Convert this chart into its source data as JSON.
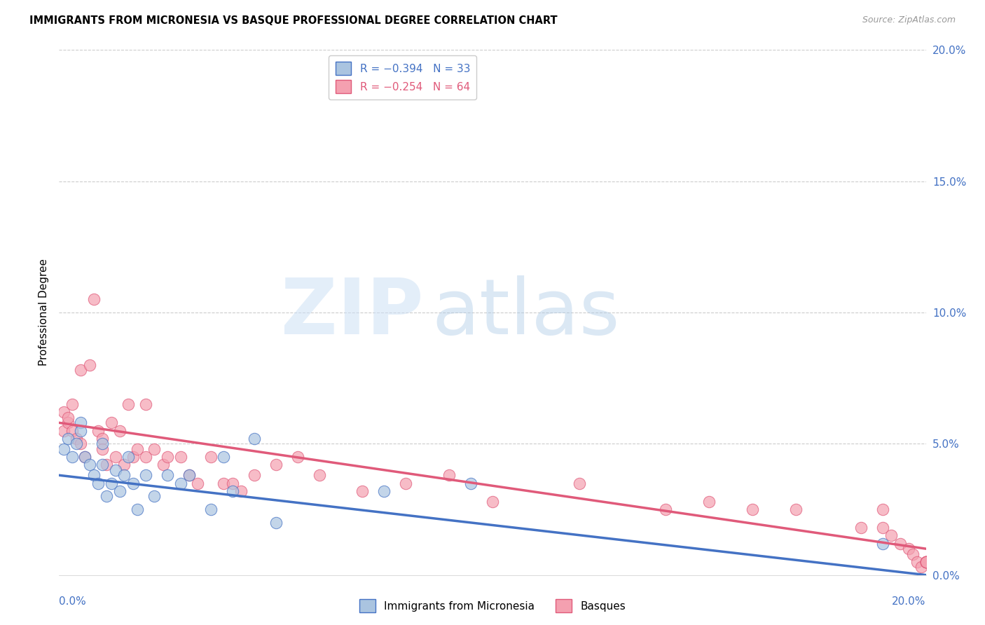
{
  "title": "IMMIGRANTS FROM MICRONESIA VS BASQUE PROFESSIONAL DEGREE CORRELATION CHART",
  "source": "Source: ZipAtlas.com",
  "ylabel": "Professional Degree",
  "right_ytick_labels": [
    "0.0%",
    "5.0%",
    "10.0%",
    "15.0%",
    "20.0%"
  ],
  "right_ytick_values": [
    0.0,
    5.0,
    10.0,
    15.0,
    20.0
  ],
  "xlim": [
    0.0,
    20.0
  ],
  "ylim": [
    0.0,
    20.0
  ],
  "legend_labels_bottom": [
    "Immigrants from Micronesia",
    "Basques"
  ],
  "legend_colors_bottom": [
    "#aac4e0",
    "#f4a0b0"
  ],
  "blue_line_color": "#4472c4",
  "pink_line_color": "#e05a7a",
  "blue_dot_color": "#aac4e0",
  "pink_dot_color": "#f4a0b0",
  "background_color": "#ffffff",
  "grid_color": "#cccccc",
  "blue_scatter_x": [
    0.1,
    0.2,
    0.3,
    0.4,
    0.5,
    0.5,
    0.6,
    0.7,
    0.8,
    0.9,
    1.0,
    1.0,
    1.1,
    1.2,
    1.3,
    1.4,
    1.5,
    1.6,
    1.7,
    1.8,
    2.0,
    2.2,
    2.5,
    2.8,
    3.0,
    3.5,
    3.8,
    4.0,
    4.5,
    5.0,
    7.5,
    9.5,
    19.0
  ],
  "blue_scatter_y": [
    4.8,
    5.2,
    4.5,
    5.0,
    5.8,
    5.5,
    4.5,
    4.2,
    3.8,
    3.5,
    5.0,
    4.2,
    3.0,
    3.5,
    4.0,
    3.2,
    3.8,
    4.5,
    3.5,
    2.5,
    3.8,
    3.0,
    3.8,
    3.5,
    3.8,
    2.5,
    4.5,
    3.2,
    5.2,
    2.0,
    3.2,
    3.5,
    1.2
  ],
  "pink_scatter_x": [
    0.1,
    0.1,
    0.2,
    0.2,
    0.3,
    0.3,
    0.4,
    0.5,
    0.5,
    0.6,
    0.7,
    0.8,
    0.9,
    1.0,
    1.0,
    1.1,
    1.2,
    1.3,
    1.4,
    1.5,
    1.6,
    1.7,
    1.8,
    2.0,
    2.0,
    2.2,
    2.4,
    2.5,
    2.8,
    3.0,
    3.2,
    3.5,
    3.8,
    4.0,
    4.2,
    4.5,
    5.0,
    5.5,
    6.0,
    7.0,
    8.0,
    9.0,
    10.0,
    12.0,
    14.0,
    15.0,
    16.0,
    17.0,
    18.5,
    19.0,
    19.0,
    19.2,
    19.4,
    19.6,
    19.7,
    19.8,
    19.9,
    20.0,
    20.0,
    20.0,
    20.0,
    20.0,
    20.0,
    20.0
  ],
  "pink_scatter_y": [
    5.5,
    6.2,
    5.8,
    6.0,
    5.5,
    6.5,
    5.2,
    7.8,
    5.0,
    4.5,
    8.0,
    10.5,
    5.5,
    5.2,
    4.8,
    4.2,
    5.8,
    4.5,
    5.5,
    4.2,
    6.5,
    4.5,
    4.8,
    4.5,
    6.5,
    4.8,
    4.2,
    4.5,
    4.5,
    3.8,
    3.5,
    4.5,
    3.5,
    3.5,
    3.2,
    3.8,
    4.2,
    4.5,
    3.8,
    3.2,
    3.5,
    3.8,
    2.8,
    3.5,
    2.5,
    2.8,
    2.5,
    2.5,
    1.8,
    1.8,
    2.5,
    1.5,
    1.2,
    1.0,
    0.8,
    0.5,
    0.3,
    0.5,
    0.5,
    0.5,
    0.5,
    0.5,
    0.5,
    0.5
  ],
  "blue_trend_x0": 0.0,
  "blue_trend_y0": 3.8,
  "blue_trend_x1": 20.0,
  "blue_trend_y1": 0.0,
  "pink_trend_x0": 0.0,
  "pink_trend_y0": 5.8,
  "pink_trend_x1": 20.0,
  "pink_trend_y1": 1.0
}
